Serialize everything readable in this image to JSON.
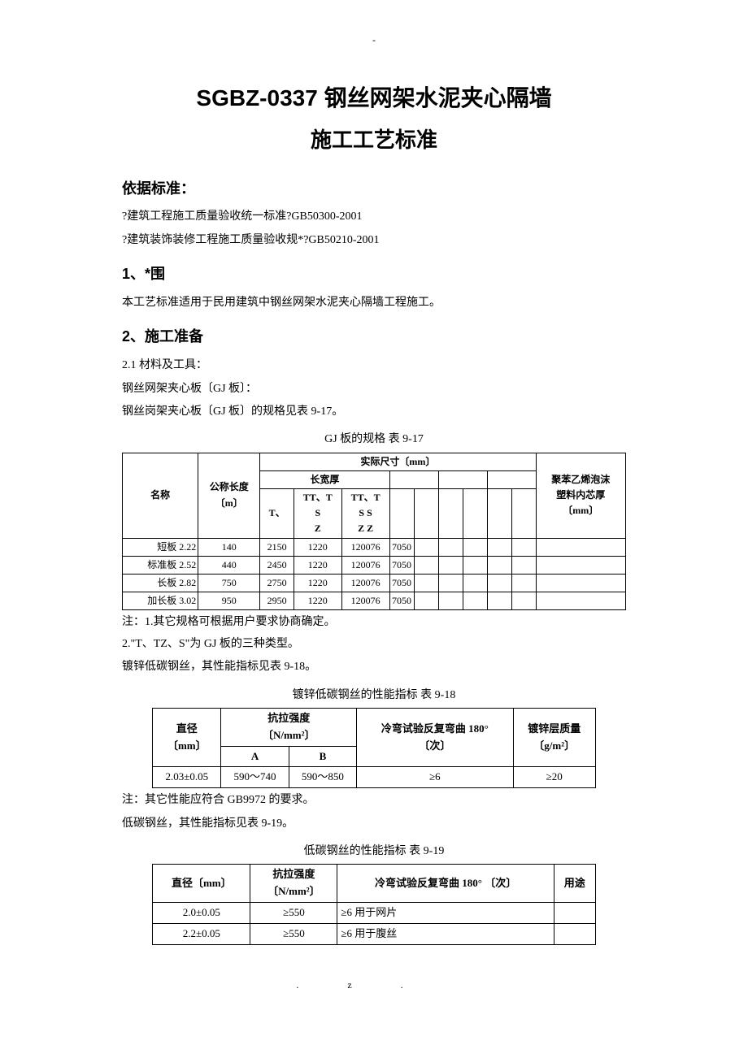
{
  "page_mark_top": "-",
  "title_line1": "SGBZ-0337 钢丝网架水泥夹心隔墙",
  "title_line2": "施工工艺标准",
  "h_basis": "依据标准：",
  "basis_1": "?建筑工程施工质量验收统一标准?GB50300-2001",
  "basis_2": "?建筑装饰装修工程施工质量验收规*?GB50210-2001",
  "h_scope": "1、*围",
  "scope_text": "本工艺标准适用于民用建筑中钢丝网架水泥夹心隔墙工程施工。",
  "h_prep": "2、施工准备",
  "prep_21": "2.1 材料及工具：",
  "prep_gj1": " 钢丝网架夹心板〔GJ 板〕：",
  "prep_gj2": " 钢丝岗架夹心板〔GJ 板〕的规格见表 9-17。",
  "caption_917": "GJ 板的规格  表 9-17",
  "t917": {
    "h_name": "名称",
    "h_nominal": "公称长度",
    "h_nominal_unit": "〔m〕",
    "h_actual": "实际尺寸〔mm〕",
    "h_lwt": "长宽厚",
    "h_types": [
      "T、",
      "TT、T",
      "TT、T"
    ],
    "h_types_sub": [
      "",
      "S",
      "S S"
    ],
    "h_types_sub2": [
      "",
      "Z",
      "Z Z"
    ],
    "h_foam": "聚苯乙烯泡沫",
    "h_foam2": "塑料内芯厚",
    "h_foam_unit": "〔mm〕",
    "rows": [
      {
        "name": "短板",
        "nom": "2.22",
        "a": "140",
        "b": "2150",
        "c": "1220",
        "d": "1200",
        "e": "76",
        "f": "70",
        "g": "50"
      },
      {
        "name": "标准板",
        "nom": "2.52",
        "a": "440",
        "b": "2450",
        "c": "1220",
        "d": "1200",
        "e": "76",
        "f": "70",
        "g": "50"
      },
      {
        "name": "长板",
        "nom": "2.82",
        "a": "750",
        "b": "2750",
        "c": "1220",
        "d": "1200",
        "e": "76",
        "f": "70",
        "g": "50"
      },
      {
        "name": "加长板",
        "nom": "3.02",
        "a": "950",
        "b": "2950",
        "c": "1220",
        "d": "1200",
        "e": "76",
        "f": "70",
        "g": "50"
      }
    ]
  },
  "note_917_1": "注：1.其它规格可根据用户要求协商确定。",
  "note_917_2": "2.\"T、TZ、S\"为 GJ 板的三种类型。",
  "prep_zinc": " 镀锌低碳钢丝，其性能指标见表 9-18。",
  "caption_918": "镀锌低碳钢丝的性能指标   表 9-18",
  "t918": {
    "h_dia": "直径",
    "h_dia_unit": "〔mm〕",
    "h_tensile": "抗拉强度",
    "h_tensile_unit": "〔N/mm²〕",
    "h_a": "A",
    "h_b": "B",
    "h_bend": "冷弯试验反复弯曲 180°",
    "h_bend_unit": "〔次〕",
    "h_zinc": "镀锌层质量",
    "h_zinc_unit": "〔g/m²〕",
    "row": {
      "dia": "2.03±0.05",
      "a": "590～740",
      "b": "590～850",
      "bend": "≥6",
      "zinc": "≥20"
    }
  },
  "note_918": "    注：其它性能应符合 GB9972 的要求。",
  "prep_low": " 低碳钢丝，其性能指标见表 9-19。",
  "caption_919": "低碳钢丝的性能指标   表 9-19",
  "t919": {
    "h_dia": "直径〔mm〕",
    "h_tensile": "抗拉强度",
    "h_tensile_unit": "〔N/mm²〕",
    "h_bend": "冷弯试验反复弯曲 180° 〔次〕",
    "h_use": "用途",
    "rows": [
      {
        "dia": "2.0±0.05",
        "t": "≥550",
        "b": "≥6",
        "use": "用于网片"
      },
      {
        "dia": "2.2±0.05",
        "t": "≥550",
        "b": "≥6",
        "use": "用于腹丝"
      }
    ]
  },
  "footer_text": ".z."
}
